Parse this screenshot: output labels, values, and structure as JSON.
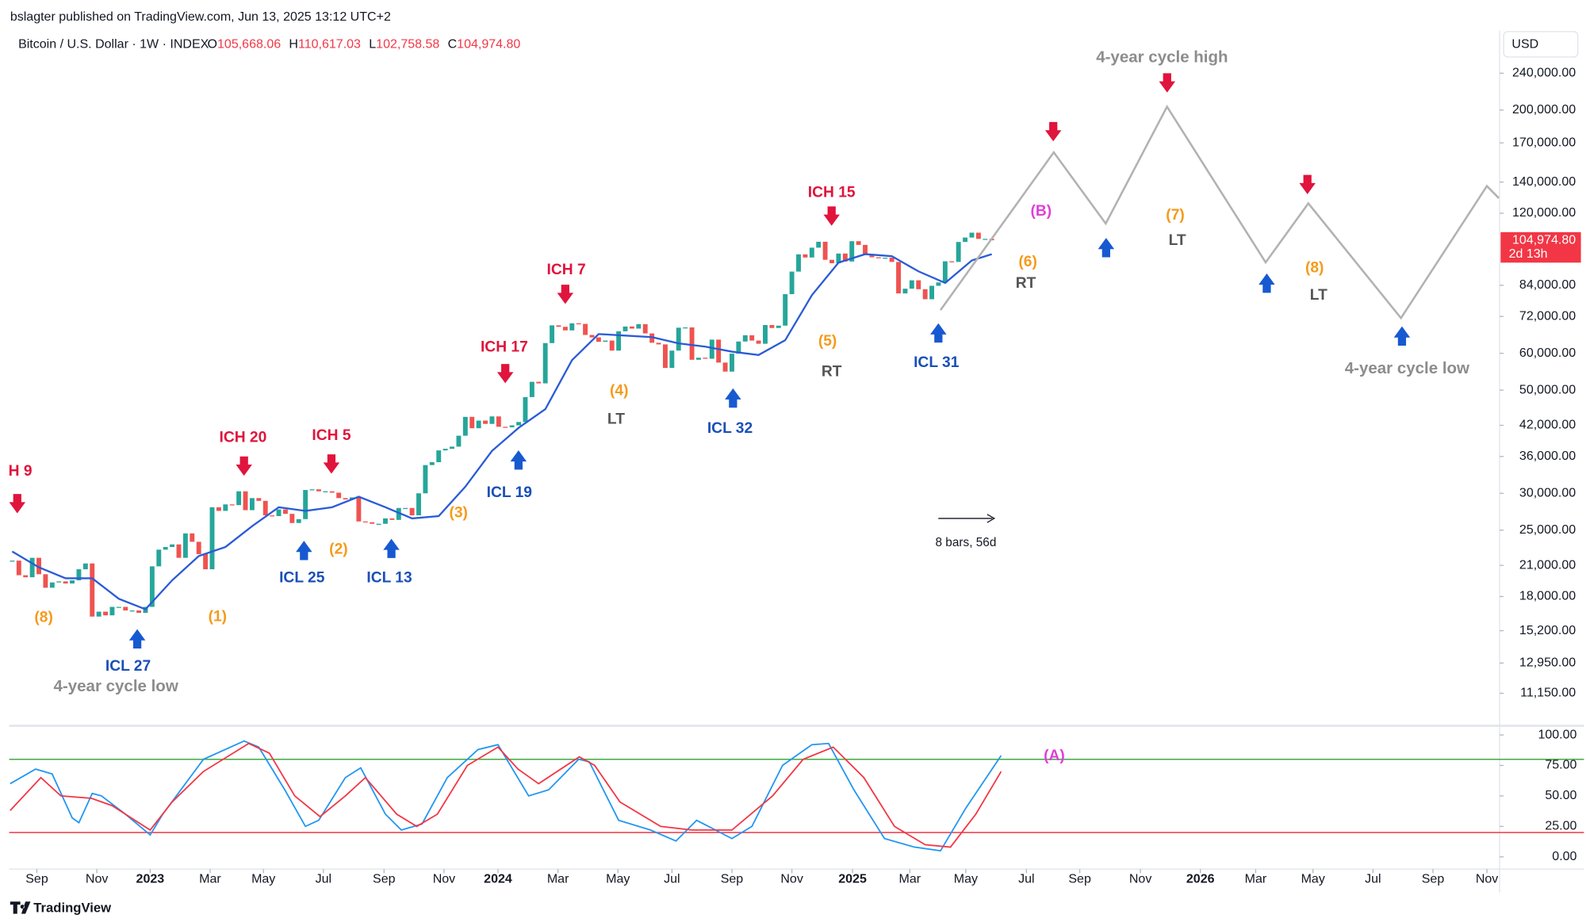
{
  "header": {
    "publisher": "bslagter published on TradingView.com, Jun 13, 2025 13:12 UTC+2",
    "symbol": "Bitcoin / U.S. Dollar · 1W · INDEX",
    "ohlc": [
      {
        "key": "O",
        "value": "105,668.06"
      },
      {
        "key": "H",
        "value": "110,617.03"
      },
      {
        "key": "L",
        "value": "102,758.58"
      },
      {
        "key": "C",
        "value": "104,974.80"
      }
    ],
    "currency": "USD",
    "logo": "TradingView"
  },
  "chart_data": [
    {
      "type": "candlestick",
      "log_scale": true,
      "up_color": "#26a69a",
      "down_color": "#ef5350",
      "values": [
        21500,
        20000,
        19800,
        21800,
        20100,
        18800,
        19300,
        19400,
        19200,
        19500,
        20600,
        21200,
        16300,
        16700,
        16400,
        17100,
        17100,
        16800,
        16800,
        16600,
        17100,
        20900,
        22700,
        23000,
        23300,
        21800,
        24600,
        23600,
        22200,
        20600,
        28000,
        27500,
        28400,
        28300,
        30300,
        27600,
        29300,
        28900,
        26900,
        26800,
        27700,
        27100,
        25900,
        26400,
        30500,
        30600,
        30300,
        30300,
        30100,
        29300,
        29100,
        29400,
        26100,
        26000,
        25800,
        25800,
        26500,
        26300,
        27900,
        27900,
        26900,
        30000,
        34500,
        35000,
        37100,
        37400,
        37800,
        39900,
        43800,
        41400,
        43000,
        42300,
        43900,
        41700,
        41600,
        42000,
        42700,
        48300,
        52100,
        51700,
        63100,
        68900,
        68400,
        67200,
        69600,
        69400,
        65700,
        64900,
        63500,
        63900,
        60800,
        66900,
        68500,
        67800,
        69300,
        66200,
        63200,
        62700,
        55800,
        60800,
        68100,
        68200,
        58100,
        58700,
        58400,
        64200,
        57300,
        54800,
        59900,
        63600,
        65600,
        63900,
        62900,
        69000,
        68000,
        68800,
        80400,
        89900,
        97900,
        96400,
        101200,
        104200,
        95300,
        93700,
        98300,
        94500,
        104500,
        102600,
        97700,
        96500,
        96100,
        96300,
        94300,
        80700,
        82600,
        86100,
        82400,
        78400,
        83800,
        85200,
        94600,
        94300,
        104100,
        106400,
        109000,
        105700,
        105700,
        104974.8
      ],
      "ma": {
        "color": "#2a5bd7",
        "x": [
          0,
          4,
          8,
          12,
          16,
          20,
          24,
          28,
          32,
          36,
          40,
          44,
          48,
          52,
          56,
          60,
          64,
          68,
          72,
          76,
          80,
          84,
          88,
          92,
          96,
          100,
          104,
          108,
          112,
          116,
          120,
          124,
          128,
          132,
          136,
          140,
          144,
          147
        ],
        "values": [
          22500,
          20800,
          19700,
          19700,
          17800,
          16900,
          19500,
          22000,
          23000,
          25500,
          28000,
          27500,
          28000,
          29500,
          28000,
          26500,
          26800,
          31000,
          37000,
          41500,
          45500,
          58000,
          66000,
          65500,
          65000,
          63000,
          62000,
          60500,
          59500,
          64000,
          80000,
          94000,
          98000,
          97000,
          90000,
          85000,
          95000,
          98000
        ]
      },
      "projection": {
        "color": "#b2b2b2",
        "x": [
          139.3,
          156.3,
          164.1,
          173.3,
          188.1,
          194.5,
          208.4,
          221.3,
          223.1
        ],
        "values": [
          74300,
          162200,
          114000,
          203300,
          94100,
          126000,
          71400,
          137300,
          129300
        ]
      },
      "xlim": [
        -0.46,
        223.2
      ],
      "ylim": [
        9590,
        296400
      ],
      "yticks": [
        {
          "value": 240000,
          "label": "240,000.00"
        },
        {
          "value": 200000,
          "label": "200,000.00"
        },
        {
          "value": 170000,
          "label": "170,000.00"
        },
        {
          "value": 140000,
          "label": "140,000.00"
        },
        {
          "value": 120000,
          "label": "120,000.00"
        },
        {
          "value": 84000,
          "label": "84,000.00"
        },
        {
          "value": 72000,
          "label": "72,000.00"
        },
        {
          "value": 60000,
          "label": "60,000.00"
        },
        {
          "value": 50000,
          "label": "50,000.00"
        },
        {
          "value": 42000,
          "label": "42,000.00"
        },
        {
          "value": 36000,
          "label": "36,000.00"
        },
        {
          "value": 30000,
          "label": "30,000.00"
        },
        {
          "value": 25000,
          "label": "25,000.00"
        },
        {
          "value": 21000,
          "label": "21,000.00"
        },
        {
          "value": 18000,
          "label": "18,000.00"
        },
        {
          "value": 15200,
          "label": "15,200.00"
        },
        {
          "value": 12950,
          "label": "12,950.00"
        },
        {
          "value": 11150,
          "label": "11,150.00"
        }
      ],
      "last_price": {
        "value": 104974.8,
        "label": "104,974.80",
        "countdown": "2d 13h",
        "color": "#f23645"
      },
      "measure": "8 bars, 56d",
      "annotations": [
        {
          "text": "H 9",
          "color": "#e0143c"
        },
        {
          "text": "(8)",
          "color": "#f59a1b"
        },
        {
          "text": "ICL 27",
          "color": "#1a4fb8"
        },
        {
          "text": "4-year cycle low",
          "color": "#8c8c8c"
        },
        {
          "text": "(1)",
          "color": "#f59a1b"
        },
        {
          "text": "ICH 20",
          "color": "#e0143c"
        },
        {
          "text": "ICL 25",
          "color": "#1a4fb8"
        },
        {
          "text": "ICH 5",
          "color": "#e0143c"
        },
        {
          "text": "(2)",
          "color": "#f59a1b"
        },
        {
          "text": "ICL 13",
          "color": "#1a4fb8"
        },
        {
          "text": "(3)",
          "color": "#f59a1b"
        },
        {
          "text": "ICH 17",
          "color": "#e0143c"
        },
        {
          "text": "ICL 19",
          "color": "#1a4fb8"
        },
        {
          "text": "ICH 7",
          "color": "#e0143c"
        },
        {
          "text": "(4)",
          "color": "#f59a1b"
        },
        {
          "text": "LT",
          "color": "#555555"
        },
        {
          "text": "ICL 32",
          "color": "#1a4fb8"
        },
        {
          "text": "ICH 15",
          "color": "#e0143c"
        },
        {
          "text": "(5)",
          "color": "#f59a1b"
        },
        {
          "text": "RT",
          "color": "#555555"
        },
        {
          "text": "ICL 31",
          "color": "#1a4fb8"
        },
        {
          "text": "(B)",
          "color": "#e040d8"
        },
        {
          "text": "(6)",
          "color": "#f59a1b"
        },
        {
          "text": "RT",
          "color": "#555555"
        },
        {
          "text": "4-year cycle high",
          "color": "#8c8c8c"
        },
        {
          "text": "(7)",
          "color": "#f59a1b"
        },
        {
          "text": "LT",
          "color": "#555555"
        },
        {
          "text": "(8)",
          "color": "#f59a1b"
        },
        {
          "text": "LT",
          "color": "#555555"
        },
        {
          "text": "4-year cycle low",
          "color": "#8c8c8c"
        }
      ]
    },
    {
      "type": "line",
      "annotation": "(A)",
      "annotation_color": "#e040d8",
      "series": [
        {
          "color": "#2196f3",
          "x": [
            -0.3,
            3.5,
            6,
            9,
            10,
            12,
            13.4,
            17,
            20.7,
            22.6,
            28.7,
            34.8,
            37,
            40.9,
            44,
            46,
            50,
            52.3,
            56,
            58.4,
            61.5,
            65.3,
            69.9,
            72.9,
            77.5,
            80.5,
            85,
            86.6,
            91,
            95.8,
            99.6,
            102.7,
            108,
            111,
            115.6,
            120,
            122.5,
            126.3,
            130.9,
            135.4,
            139.3,
            143.1,
            148.4
          ],
          "values": [
            60,
            72,
            68,
            32,
            28,
            52,
            50,
            35,
            18,
            35,
            80,
            95,
            90,
            55,
            25,
            30,
            65,
            73,
            35,
            22,
            27,
            65,
            88,
            92,
            50,
            55,
            80,
            78,
            30,
            22,
            13,
            30,
            15,
            25,
            75,
            92,
            93,
            55,
            15,
            8,
            5,
            40,
            83
          ]
        },
        {
          "color": "#f23645",
          "x": [
            -0.3,
            4.3,
            7.3,
            11.9,
            15,
            20.7,
            24,
            28.7,
            35.5,
            38.6,
            42.4,
            46.2,
            50,
            53,
            57.7,
            60.7,
            63.8,
            68.3,
            72.9,
            75.9,
            79,
            85.1,
            87.4,
            91.2,
            97.3,
            102,
            108,
            114.1,
            118.7,
            123.2,
            127.8,
            132.4,
            137,
            140.8,
            144.6,
            148.4
          ],
          "values": [
            38,
            65,
            50,
            48,
            42,
            22,
            45,
            70,
            93,
            85,
            50,
            33,
            50,
            65,
            35,
            25,
            35,
            75,
            90,
            72,
            60,
            82,
            75,
            45,
            25,
            22,
            22,
            50,
            80,
            90,
            65,
            25,
            10,
            8,
            35,
            70
          ]
        }
      ],
      "levels": [
        {
          "value": 80,
          "color": "#4caf50"
        },
        {
          "value": 20,
          "color": "#f23645"
        }
      ],
      "xlim": [
        -0.46,
        223.2
      ],
      "ylim": [
        -10,
        106.7
      ],
      "yticks": [
        {
          "value": 100,
          "label": "100.00"
        },
        {
          "value": 75,
          "label": "75.00"
        },
        {
          "value": 50,
          "label": "50.00"
        },
        {
          "value": 25,
          "label": "25.00"
        },
        {
          "value": 0,
          "label": "0.00"
        }
      ],
      "xticks": [
        {
          "value": 3.7,
          "label": "Sep"
        },
        {
          "value": 12.7,
          "label": "Nov"
        },
        {
          "value": 20.7,
          "label": "2023"
        },
        {
          "value": 29.7,
          "label": "Mar"
        },
        {
          "value": 37.7,
          "label": "May"
        },
        {
          "value": 46.7,
          "label": "Jul"
        },
        {
          "value": 55.8,
          "label": "Sep"
        },
        {
          "value": 64.8,
          "label": "Nov"
        },
        {
          "value": 72.9,
          "label": "2024"
        },
        {
          "value": 81.9,
          "label": "Mar"
        },
        {
          "value": 90.9,
          "label": "May"
        },
        {
          "value": 99,
          "label": "Jul"
        },
        {
          "value": 108,
          "label": "Sep"
        },
        {
          "value": 117,
          "label": "Nov"
        },
        {
          "value": 126.1,
          "label": "2025"
        },
        {
          "value": 134.7,
          "label": "Mar"
        },
        {
          "value": 143.1,
          "label": "May"
        },
        {
          "value": 152.2,
          "label": "Jul"
        },
        {
          "value": 160.2,
          "label": "Sep"
        },
        {
          "value": 169.3,
          "label": "Nov"
        },
        {
          "value": 178.3,
          "label": "2026"
        },
        {
          "value": 186.6,
          "label": "Mar"
        },
        {
          "value": 195.2,
          "label": "May"
        },
        {
          "value": 204.2,
          "label": "Jul"
        },
        {
          "value": 213.2,
          "label": "Sep"
        },
        {
          "value": 221.3,
          "label": "Nov"
        }
      ]
    }
  ]
}
